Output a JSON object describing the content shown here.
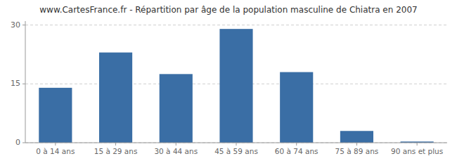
{
  "chart_data": {
    "type": "bar",
    "title": "www.CartesFrance.fr - Répartition par âge de la population masculine de Chiatra en 2007",
    "categories": [
      "0 à 14 ans",
      "15 à 29 ans",
      "30 à 44 ans",
      "45 à 59 ans",
      "60 à 74 ans",
      "75 à 89 ans",
      "90 ans et plus"
    ],
    "values": [
      14,
      23,
      17.5,
      29,
      18,
      3,
      0.3
    ],
    "color": "#3a6ea5",
    "ylim": [
      0,
      31
    ],
    "yticks": [
      0,
      15,
      30
    ],
    "grid": true
  }
}
